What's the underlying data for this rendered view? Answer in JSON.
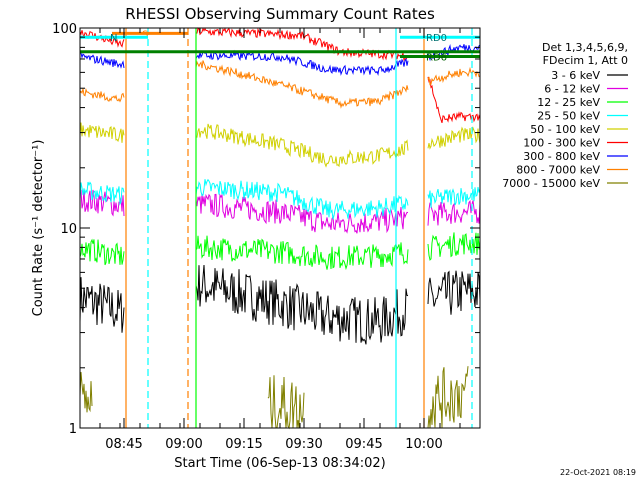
{
  "chart_data": {
    "type": "line",
    "title": "RHESSI Observing Summary Count Rates",
    "xlabel": "Start Time (06-Sep-13 08:34:02)",
    "ylabel": "Count Rate (s⁻¹ detector⁻¹)",
    "x_unit": "minutes after 08:34:02",
    "xlim": [
      0,
      100
    ],
    "ylim": [
      1,
      100
    ],
    "yscale": "log",
    "x_ticks": [
      {
        "value": 11,
        "label": "08:45"
      },
      {
        "value": 26,
        "label": "09:00"
      },
      {
        "value": 41,
        "label": "09:15"
      },
      {
        "value": 56,
        "label": "09:30"
      },
      {
        "value": 71,
        "label": "09:45"
      },
      {
        "value": 86,
        "label": "10:00"
      }
    ],
    "y_ticks": [
      {
        "value": 1,
        "label": "1"
      },
      {
        "value": 10,
        "label": "10"
      },
      {
        "value": 100,
        "label": "100"
      }
    ],
    "legend_header": [
      "Det 1,3,4,5,6,9,",
      "FDecim 1, Att 0"
    ],
    "legend_position": "right",
    "series": [
      {
        "name": "3 - 6 keV",
        "color": "#000000",
        "keyframes": [
          [
            0,
            4.5
          ],
          [
            10,
            3.8
          ],
          [
            30,
            5.2
          ],
          [
            50,
            4.2
          ],
          [
            60,
            3.6
          ],
          [
            75,
            3.4
          ],
          [
            85,
            4.2
          ],
          [
            95,
            4.8
          ],
          [
            100,
            4.8
          ]
        ]
      },
      {
        "name": "6 - 12 keV",
        "color": "#e000e0",
        "keyframes": [
          [
            0,
            14
          ],
          [
            10,
            13
          ],
          [
            30,
            13.2
          ],
          [
            50,
            12
          ],
          [
            62,
            10.5
          ],
          [
            75,
            10.8
          ],
          [
            85,
            11.6
          ],
          [
            95,
            12
          ],
          [
            100,
            12
          ]
        ]
      },
      {
        "name": "12 - 25 keV",
        "color": "#00ff00",
        "keyframes": [
          [
            0,
            8
          ],
          [
            10,
            7.2
          ],
          [
            30,
            8
          ],
          [
            50,
            7.6
          ],
          [
            62,
            7.1
          ],
          [
            75,
            7.3
          ],
          [
            85,
            7.8
          ],
          [
            95,
            8.4
          ],
          [
            100,
            8.4
          ]
        ]
      },
      {
        "name": "25 - 50 keV",
        "color": "#00ffff",
        "keyframes": [
          [
            0,
            15.5
          ],
          [
            10,
            14.6
          ],
          [
            30,
            16
          ],
          [
            50,
            15
          ],
          [
            62,
            12.2
          ],
          [
            75,
            12.6
          ],
          [
            85,
            13.6
          ],
          [
            95,
            14.6
          ],
          [
            100,
            14.6
          ]
        ]
      },
      {
        "name": "50 - 100 keV",
        "color": "#d0d000",
        "keyframes": [
          [
            0,
            31
          ],
          [
            10,
            29
          ],
          [
            30,
            31
          ],
          [
            50,
            26
          ],
          [
            62,
            22
          ],
          [
            75,
            23
          ],
          [
            85,
            26
          ],
          [
            95,
            29
          ],
          [
            100,
            29
          ]
        ]
      },
      {
        "name": "100 - 300 keV",
        "color": "#ff0000",
        "keyframes": [
          [
            0,
            96
          ],
          [
            10,
            83
          ],
          [
            30,
            96
          ],
          [
            55,
            92
          ],
          [
            65,
            76
          ],
          [
            75,
            74
          ],
          [
            85,
            72
          ],
          [
            90,
            35
          ],
          [
            95,
            36
          ],
          [
            100,
            36
          ]
        ]
      },
      {
        "name": "300 - 800 keV",
        "color": "#0000ff",
        "keyframes": [
          [
            0,
            72
          ],
          [
            10,
            66
          ],
          [
            30,
            73
          ],
          [
            50,
            72
          ],
          [
            62,
            62
          ],
          [
            75,
            61
          ],
          [
            85,
            70
          ],
          [
            95,
            80
          ],
          [
            100,
            80
          ]
        ]
      },
      {
        "name": "800 - 7000 keV",
        "color": "#ff8000",
        "keyframes": [
          [
            0,
            48
          ],
          [
            10,
            44
          ],
          [
            30,
            66
          ],
          [
            50,
            52
          ],
          [
            65,
            42
          ],
          [
            75,
            43
          ],
          [
            85,
            53
          ],
          [
            95,
            60
          ],
          [
            100,
            60
          ]
        ]
      },
      {
        "name": "7000 - 15000 keV",
        "color": "#808000",
        "keyframes": [
          [
            0,
            1.4
          ],
          [
            10,
            1.2
          ],
          [
            30,
            1.3
          ],
          [
            50,
            1.3
          ],
          [
            62,
            1.2
          ],
          [
            75,
            1.2
          ],
          [
            85,
            1.3
          ],
          [
            95,
            1.5
          ],
          [
            100,
            1.5
          ]
        ]
      }
    ],
    "data_gaps": [
      [
        11,
        29
      ],
      [
        82,
        87
      ]
    ],
    "sparse_intervals": [
      {
        "series": "7000 - 15000 keV",
        "ranges": [
          [
            0,
            3
          ],
          [
            47,
            56
          ],
          [
            87,
            97
          ]
        ]
      }
    ],
    "vertical_markers": [
      {
        "x": 11.5,
        "color": "#ff8000",
        "style": "solid"
      },
      {
        "x": 17,
        "color": "#00ffff",
        "style": "dashed"
      },
      {
        "x": 27,
        "color": "#ff8000",
        "style": "dashed"
      },
      {
        "x": 29,
        "color": "#00ff00",
        "style": "solid"
      },
      {
        "x": 79,
        "color": "#00ffff",
        "style": "solid"
      },
      {
        "x": 86,
        "color": "#ff8000",
        "style": "solid"
      },
      {
        "x": 98,
        "color": "#00ffff",
        "style": "dashed"
      }
    ],
    "flag_bars": [
      {
        "label": "S",
        "color": "#ff8000",
        "x_start": 8,
        "x_end": 27,
        "y": 94
      },
      {
        "label": "N",
        "color": "#00ffff",
        "x_start": 0,
        "x_end": 17,
        "y": 90
      },
      {
        "label": "RD0",
        "color": "#00ffff",
        "x_start": 80,
        "x_end": 100,
        "y": 90
      },
      {
        "label": "",
        "color": "#008000",
        "x_start": 0,
        "x_end": 100,
        "y": 76
      },
      {
        "label": "RD6",
        "color": "#008000",
        "x_start": 80,
        "x_end": 100,
        "y": 72
      }
    ],
    "grid": false
  },
  "footer": {
    "timestamp": "22-Oct-2021 08:19"
  }
}
